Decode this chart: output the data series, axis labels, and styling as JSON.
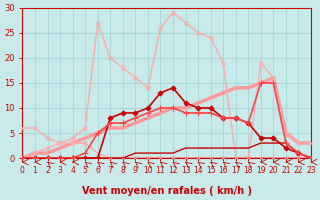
{
  "background_color": "#c8eaea",
  "grid_color": "#a8d8d8",
  "xlabel": "Vent moyen/en rafales ( km/h )",
  "xlim": [
    0,
    23
  ],
  "ylim": [
    0,
    30
  ],
  "yticks": [
    0,
    5,
    10,
    15,
    20,
    25,
    30
  ],
  "xticks": [
    0,
    1,
    2,
    3,
    4,
    5,
    6,
    7,
    8,
    9,
    10,
    11,
    12,
    13,
    14,
    15,
    16,
    17,
    18,
    19,
    20,
    21,
    22,
    23
  ],
  "series": [
    {
      "x": [
        0,
        1,
        2,
        3,
        4,
        5,
        6,
        7,
        8,
        9,
        10,
        11,
        12,
        13,
        14,
        15,
        16,
        17,
        18,
        19,
        20,
        21,
        22,
        23
      ],
      "y": [
        0,
        1,
        2,
        3,
        4,
        6,
        27,
        20,
        18,
        16,
        14,
        26,
        29,
        27,
        25,
        24,
        19,
        0,
        0,
        0,
        0,
        0,
        0,
        0
      ],
      "color": "#ffaaaa",
      "lw": 1.0,
      "marker": "x",
      "ms": 3,
      "zorder": 3
    },
    {
      "x": [
        0,
        1,
        2,
        3,
        4,
        5,
        6,
        7,
        8,
        9,
        10,
        11,
        12,
        13,
        14,
        15,
        16,
        17,
        18,
        19,
        20,
        21,
        22,
        23
      ],
      "y": [
        6,
        6,
        4,
        3,
        3,
        3,
        1,
        0,
        0,
        0,
        0,
        0,
        0,
        0,
        0,
        0,
        0,
        0,
        0,
        19,
        16,
        5,
        3,
        3
      ],
      "color": "#ffaaaa",
      "lw": 1.0,
      "marker": "x",
      "ms": 3,
      "zorder": 3
    },
    {
      "x": [
        0,
        1,
        2,
        3,
        4,
        5,
        6,
        7,
        8,
        9,
        10,
        11,
        12,
        13,
        14,
        15,
        16,
        17,
        18,
        19,
        20,
        21,
        22,
        23
      ],
      "y": [
        0,
        1,
        1,
        2,
        3,
        4,
        5,
        6,
        6,
        7,
        8,
        9,
        10,
        10,
        11,
        12,
        13,
        14,
        14,
        15,
        16,
        5,
        3,
        3
      ],
      "color": "#ff9999",
      "lw": 2.5,
      "marker": null,
      "ms": 0,
      "zorder": 2
    },
    {
      "x": [
        0,
        1,
        2,
        3,
        4,
        5,
        6,
        7,
        8,
        9,
        10,
        11,
        12,
        13,
        14,
        15,
        16,
        17,
        18,
        19,
        20,
        21,
        22,
        23
      ],
      "y": [
        0,
        0,
        0,
        0,
        0,
        0,
        0,
        8,
        9,
        9,
        10,
        13,
        14,
        11,
        10,
        10,
        8,
        8,
        7,
        4,
        4,
        2,
        1,
        0
      ],
      "color": "#cc0000",
      "lw": 1.2,
      "marker": "D",
      "ms": 2.5,
      "zorder": 4
    },
    {
      "x": [
        0,
        1,
        2,
        3,
        4,
        5,
        6,
        7,
        8,
        9,
        10,
        11,
        12,
        13,
        14,
        15,
        16,
        17,
        18,
        19,
        20,
        21,
        22,
        23
      ],
      "y": [
        0,
        0,
        0,
        0,
        0,
        1,
        5,
        7,
        7,
        8,
        9,
        10,
        10,
        9,
        9,
        9,
        8,
        8,
        7,
        15,
        15,
        3,
        1,
        0
      ],
      "color": "#ff4444",
      "lw": 1.2,
      "marker": "+",
      "ms": 4,
      "zorder": 4
    },
    {
      "x": [
        0,
        1,
        2,
        3,
        4,
        5,
        6,
        7,
        8,
        9,
        10,
        11,
        12,
        13,
        14,
        15,
        16,
        17,
        18,
        19,
        20,
        21,
        22,
        23
      ],
      "y": [
        0,
        0,
        0,
        0,
        0,
        0,
        0,
        0,
        0,
        1,
        1,
        1,
        1,
        2,
        2,
        2,
        2,
        2,
        2,
        3,
        3,
        3,
        1,
        0
      ],
      "color": "#cc0000",
      "lw": 1.0,
      "marker": null,
      "ms": 0,
      "zorder": 3
    },
    {
      "x": [
        0,
        1,
        2,
        3,
        4,
        5,
        6,
        7,
        8,
        9,
        10,
        11,
        12,
        13,
        14,
        15,
        16,
        17,
        18,
        19,
        20,
        21,
        22,
        23
      ],
      "y": [
        0,
        0,
        0,
        0,
        0,
        0,
        0,
        0,
        0,
        0,
        0,
        0,
        0,
        0,
        0,
        0,
        0,
        0,
        0,
        0,
        0,
        0,
        0,
        0
      ],
      "color": "#dd0000",
      "lw": 1.0,
      "marker": null,
      "ms": 0,
      "zorder": 3
    }
  ],
  "arrows": {
    "x": [
      0,
      1,
      2,
      3,
      4,
      5,
      6,
      7,
      8,
      9,
      10,
      11,
      12,
      13,
      14,
      15,
      16,
      17,
      18,
      19,
      20,
      21,
      22,
      23
    ],
    "color": "#cc0000",
    "angles": [
      270,
      270,
      225,
      270,
      270,
      225,
      225,
      225,
      225,
      225,
      225,
      225,
      225,
      225,
      225,
      225,
      225,
      225,
      225,
      270,
      270,
      270,
      270,
      270
    ]
  },
  "xlabel_fontsize": 7,
  "tick_fontsize": 5.5,
  "red_color": "#cc0000"
}
